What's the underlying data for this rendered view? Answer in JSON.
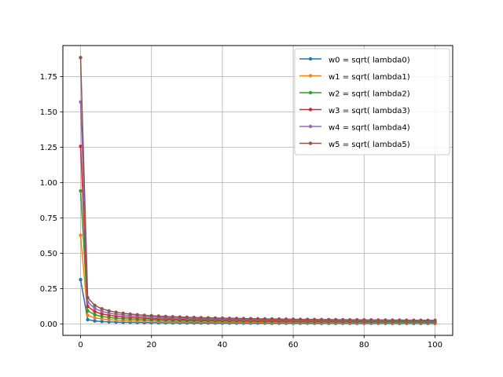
{
  "chart_data": {
    "type": "line",
    "title": "",
    "xlabel": "",
    "ylabel": "",
    "xlim": [
      -5,
      105
    ],
    "ylim": [
      -0.08,
      1.97
    ],
    "x_ticks": [
      0,
      20,
      40,
      60,
      80,
      100
    ],
    "x_tick_labels": [
      "0",
      "20",
      "40",
      "60",
      "80",
      "100"
    ],
    "y_ticks": [
      0.0,
      0.25,
      0.5,
      0.75,
      1.0,
      1.25,
      1.5,
      1.75
    ],
    "y_tick_labels": [
      "0.00",
      "0.25",
      "0.50",
      "0.75",
      "1.00",
      "1.25",
      "1.50",
      "1.75"
    ],
    "grid": true,
    "legend_position": "top-right",
    "x_start": 0,
    "x_step": 2,
    "x_end": 100,
    "series": [
      {
        "name": "w0 = sqrt( lambda0)",
        "color": "#1f77b4",
        "first": 0.314,
        "scale": 0.044
      },
      {
        "name": "w1 = sqrt( lambda1)",
        "color": "#ff7f0e",
        "first": 0.628,
        "scale": 0.088
      },
      {
        "name": "w2 = sqrt( lambda2)",
        "color": "#2ca02c",
        "first": 0.942,
        "scale": 0.132
      },
      {
        "name": "w3 = sqrt( lambda3)",
        "color": "#d62728",
        "first": 1.257,
        "scale": 0.176
      },
      {
        "name": "w4 = sqrt( lambda4)",
        "color": "#9467bd",
        "first": 1.571,
        "scale": 0.22
      },
      {
        "name": "w5 = sqrt( lambda5)",
        "color": "#8c564b",
        "first": 1.885,
        "scale": 0.264
      }
    ]
  }
}
